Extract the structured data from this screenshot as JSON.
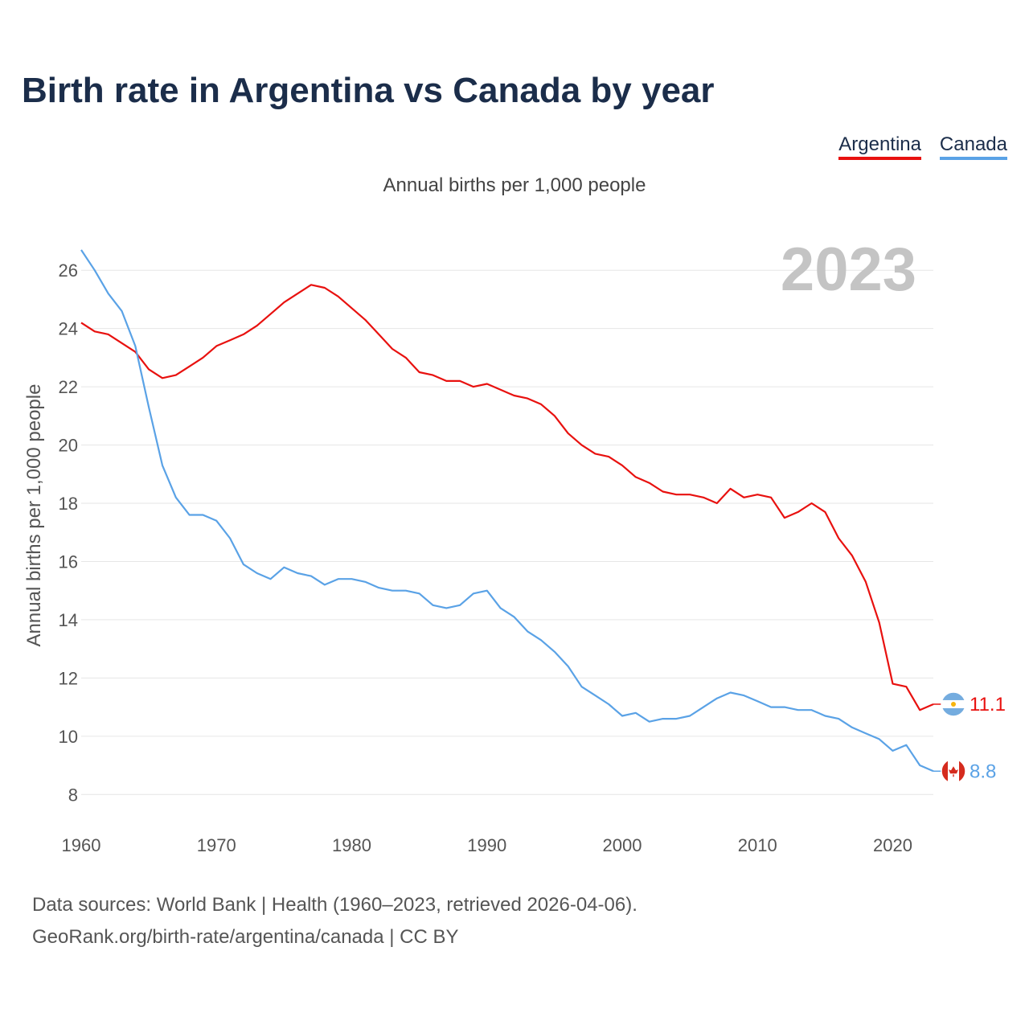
{
  "title": "Birth rate in Argentina vs Canada by year",
  "legend": [
    {
      "name": "Argentina",
      "color": "#e8110f"
    },
    {
      "name": "Canada",
      "color": "#5aa2e6"
    }
  ],
  "chart_data": {
    "type": "line",
    "title": "Birth rate in Argentina vs Canada by year",
    "subtitle": "Annual births per 1,000 people",
    "ylabel": "Annual births per 1,000 people",
    "xlabel": "",
    "year_watermark": "2023",
    "xlim": [
      1960,
      2023
    ],
    "ylim": [
      7.4,
      27.0
    ],
    "xticks": [
      1960,
      1970,
      1980,
      1990,
      2000,
      2010,
      2020
    ],
    "yticks": [
      8,
      10,
      12,
      14,
      16,
      18,
      20,
      22,
      24,
      26
    ],
    "grid": true,
    "x": [
      1960,
      1961,
      1962,
      1963,
      1964,
      1965,
      1966,
      1967,
      1968,
      1969,
      1970,
      1971,
      1972,
      1973,
      1974,
      1975,
      1976,
      1977,
      1978,
      1979,
      1980,
      1981,
      1982,
      1983,
      1984,
      1985,
      1986,
      1987,
      1988,
      1989,
      1990,
      1991,
      1992,
      1993,
      1994,
      1995,
      1996,
      1997,
      1998,
      1999,
      2000,
      2001,
      2002,
      2003,
      2004,
      2005,
      2006,
      2007,
      2008,
      2009,
      2010,
      2011,
      2012,
      2013,
      2014,
      2015,
      2016,
      2017,
      2018,
      2019,
      2020,
      2021,
      2022,
      2023
    ],
    "series": [
      {
        "name": "Argentina",
        "color": "#e8110f",
        "end_label": "11.1",
        "values": [
          24.2,
          23.9,
          23.8,
          23.5,
          23.2,
          22.6,
          22.3,
          22.4,
          22.7,
          23.0,
          23.4,
          23.6,
          23.8,
          24.1,
          24.5,
          24.9,
          25.2,
          25.5,
          25.4,
          25.1,
          24.7,
          24.3,
          23.8,
          23.3,
          23.0,
          22.5,
          22.4,
          22.2,
          22.2,
          22.0,
          22.1,
          21.9,
          21.7,
          21.6,
          21.4,
          21.0,
          20.4,
          20.0,
          19.7,
          19.6,
          19.3,
          18.9,
          18.7,
          18.4,
          18.3,
          18.3,
          18.2,
          18.0,
          18.5,
          18.2,
          18.3,
          18.2,
          17.5,
          17.7,
          18.0,
          17.7,
          16.8,
          16.2,
          15.3,
          13.9,
          11.8,
          11.7,
          10.9,
          11.1
        ]
      },
      {
        "name": "Canada",
        "color": "#5aa2e6",
        "end_label": "8.8",
        "values": [
          26.7,
          26.0,
          25.2,
          24.6,
          23.4,
          21.3,
          19.3,
          18.2,
          17.6,
          17.6,
          17.4,
          16.8,
          15.9,
          15.6,
          15.4,
          15.8,
          15.6,
          15.5,
          15.2,
          15.4,
          15.4,
          15.3,
          15.1,
          15.0,
          15.0,
          14.9,
          14.5,
          14.4,
          14.5,
          14.9,
          15.0,
          14.4,
          14.1,
          13.6,
          13.3,
          12.9,
          12.4,
          11.7,
          11.4,
          11.1,
          10.7,
          10.8,
          10.5,
          10.6,
          10.6,
          10.7,
          11.0,
          11.3,
          11.5,
          11.4,
          11.2,
          11.0,
          11.0,
          10.9,
          10.9,
          10.7,
          10.6,
          10.3,
          10.1,
          9.9,
          9.5,
          9.7,
          9.0,
          8.8
        ]
      }
    ]
  },
  "footer": {
    "line1": "Data sources: World Bank | Health (1960–2023, retrieved 2026-04-06).",
    "line2": "GeoRank.org/birth-rate/argentina/canada | CC BY"
  }
}
